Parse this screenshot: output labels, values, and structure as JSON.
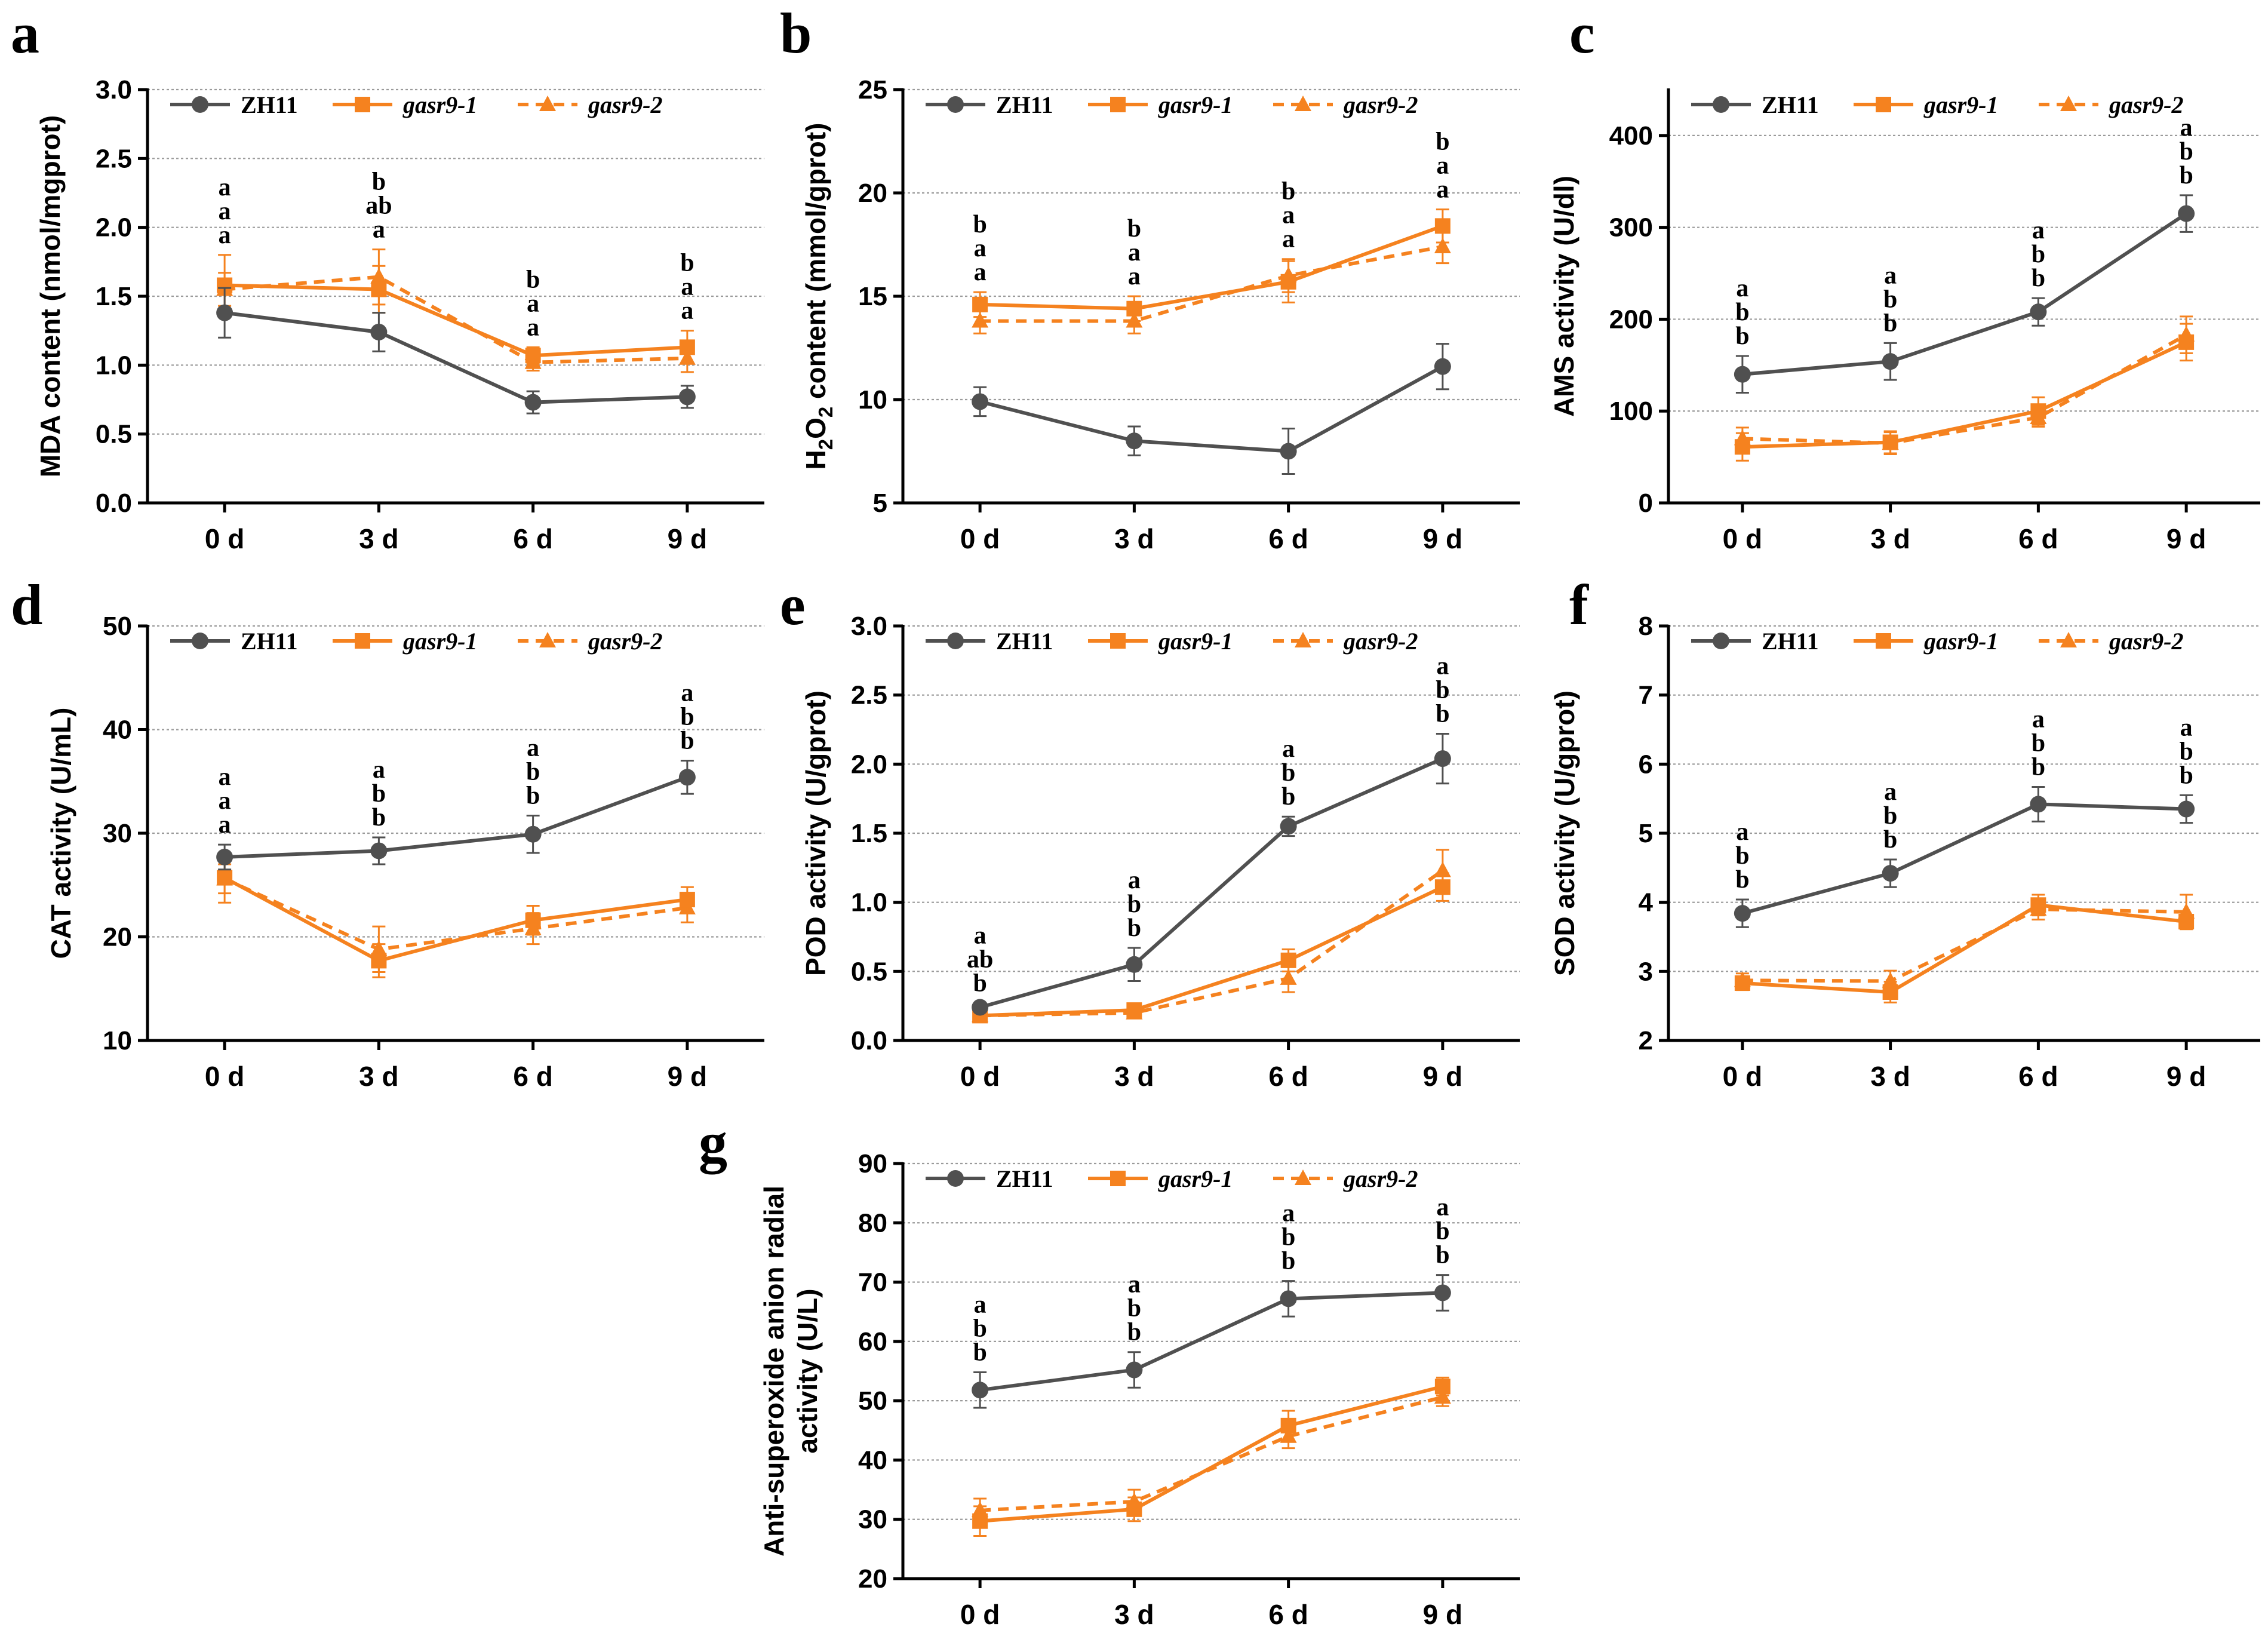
{
  "colors": {
    "zh11": "#505050",
    "mutant": "#f5821f",
    "axis": "#000000",
    "grid": "#9a9a9a"
  },
  "legend": {
    "entries": [
      {
        "label": "ZH11",
        "italic": false,
        "marker": "circle",
        "dashed": false,
        "color": "#505050"
      },
      {
        "label": "gasr9-1",
        "italic": true,
        "marker": "square",
        "dashed": false,
        "color": "#f5821f"
      },
      {
        "label": "gasr9-2",
        "italic": true,
        "marker": "triangle",
        "dashed": true,
        "color": "#f5821f"
      }
    ]
  },
  "chart_data": [
    {
      "panel": "a",
      "type": "line",
      "categories": [
        "0 d",
        "3 d",
        "6 d",
        "9 d"
      ],
      "ylabel": "MDA content (nmol/mgprot)",
      "ylim": [
        0,
        3
      ],
      "yticks": [
        0.0,
        0.5,
        1.0,
        1.5,
        2.0,
        2.5,
        3.0
      ],
      "ytick_decimals": 1,
      "series": [
        {
          "name": "ZH11",
          "values": [
            1.38,
            1.24,
            0.73,
            0.77
          ],
          "errors": [
            0.18,
            0.14,
            0.08,
            0.08
          ]
        },
        {
          "name": "gasr9-1",
          "values": [
            1.58,
            1.55,
            1.07,
            1.13
          ],
          "errors": [
            0.22,
            0.17,
            0.06,
            0.12
          ]
        },
        {
          "name": "gasr9-2",
          "values": [
            1.55,
            1.64,
            1.02,
            1.05
          ],
          "errors": [
            0.12,
            0.2,
            0.06,
            0.1
          ]
        }
      ],
      "significance": [
        [
          "a",
          "a",
          "a"
        ],
        [
          "b",
          "ab",
          "a"
        ],
        [
          "b",
          "a",
          "a"
        ],
        [
          "b",
          "a",
          "a"
        ]
      ]
    },
    {
      "panel": "b",
      "type": "line",
      "categories": [
        "0 d",
        "3 d",
        "6 d",
        "9 d"
      ],
      "ylabel_main": "H",
      "ylabel_sub1": "2",
      "ylabel_mid": "O",
      "ylabel_sub2": "2",
      "ylabel_tail": " content (mmol/gprot)",
      "ylim": [
        5,
        25
      ],
      "yticks": [
        5,
        10,
        15,
        20,
        25
      ],
      "ytick_decimals": 0,
      "series": [
        {
          "name": "ZH11",
          "values": [
            9.9,
            8.0,
            7.5,
            11.6
          ],
          "errors": [
            0.7,
            0.7,
            1.1,
            1.1
          ]
        },
        {
          "name": "gasr9-1",
          "values": [
            14.6,
            14.4,
            15.7,
            18.4
          ],
          "errors": [
            0.6,
            0.6,
            1.0,
            0.8
          ]
        },
        {
          "name": "gasr9-2",
          "values": [
            13.8,
            13.8,
            16.0,
            17.4
          ],
          "errors": [
            0.6,
            0.6,
            0.8,
            0.8
          ]
        }
      ],
      "significance": [
        [
          "b",
          "a",
          "a"
        ],
        [
          "b",
          "a",
          "a"
        ],
        [
          "b",
          "a",
          "a"
        ],
        [
          "b",
          "a",
          "a"
        ]
      ]
    },
    {
      "panel": "c",
      "type": "line",
      "categories": [
        "0 d",
        "3 d",
        "6 d",
        "9 d"
      ],
      "ylabel": "AMS activity (U/dl)",
      "ylim": [
        0,
        450
      ],
      "yticks": [
        0,
        100,
        200,
        300,
        400
      ],
      "ytick_decimals": 0,
      "series": [
        {
          "name": "ZH11",
          "values": [
            140,
            154,
            208,
            315
          ],
          "errors": [
            20,
            20,
            15,
            20
          ]
        },
        {
          "name": "gasr9-1",
          "values": [
            61,
            66,
            100,
            175
          ],
          "errors": [
            15,
            12,
            15,
            20
          ]
        },
        {
          "name": "gasr9-2",
          "values": [
            70,
            65,
            93,
            183
          ],
          "errors": [
            12,
            12,
            10,
            20
          ]
        }
      ],
      "significance": [
        [
          "a",
          "b",
          "b"
        ],
        [
          "a",
          "b",
          "b"
        ],
        [
          "a",
          "b",
          "b"
        ],
        [
          "a",
          "b",
          "b"
        ]
      ]
    },
    {
      "panel": "d",
      "type": "line",
      "categories": [
        "0 d",
        "3 d",
        "6 d",
        "9 d"
      ],
      "ylabel": "CAT activity (U/mL)",
      "ylim": [
        10,
        50
      ],
      "yticks": [
        10,
        20,
        30,
        40,
        50
      ],
      "ytick_decimals": 0,
      "series": [
        {
          "name": "ZH11",
          "values": [
            27.7,
            28.3,
            29.9,
            35.4
          ],
          "errors": [
            1.2,
            1.3,
            1.8,
            1.6
          ]
        },
        {
          "name": "gasr9-1",
          "values": [
            25.7,
            17.7,
            21.6,
            23.6
          ],
          "errors": [
            2.4,
            1.6,
            1.4,
            1.2
          ]
        },
        {
          "name": "gasr9-2",
          "values": [
            25.6,
            18.8,
            20.8,
            22.8
          ],
          "errors": [
            1.4,
            2.2,
            1.5,
            1.4
          ]
        }
      ],
      "significance": [
        [
          "a",
          "a",
          "a"
        ],
        [
          "a",
          "b",
          "b"
        ],
        [
          "a",
          "b",
          "b"
        ],
        [
          "a",
          "b",
          "b"
        ]
      ]
    },
    {
      "panel": "e",
      "type": "line",
      "categories": [
        "0 d",
        "3 d",
        "6 d",
        "9 d"
      ],
      "ylabel": "POD activity (U/gprot)",
      "ylim": [
        0,
        3
      ],
      "yticks": [
        0.0,
        0.5,
        1.0,
        1.5,
        2.0,
        2.5,
        3.0
      ],
      "ytick_decimals": 1,
      "series": [
        {
          "name": "ZH11",
          "values": [
            0.24,
            0.55,
            1.55,
            2.04
          ],
          "errors": [
            0.03,
            0.12,
            0.07,
            0.18
          ]
        },
        {
          "name": "gasr9-1",
          "values": [
            0.18,
            0.22,
            0.58,
            1.11
          ],
          "errors": [
            0.03,
            0.04,
            0.08,
            0.1
          ]
        },
        {
          "name": "gasr9-2",
          "values": [
            0.18,
            0.2,
            0.45,
            1.23
          ],
          "errors": [
            0.03,
            0.04,
            0.1,
            0.15
          ]
        }
      ],
      "significance": [
        [
          "a",
          "ab",
          "b"
        ],
        [
          "a",
          "b",
          "b"
        ],
        [
          "a",
          "b",
          "b"
        ],
        [
          "a",
          "b",
          "b"
        ]
      ]
    },
    {
      "panel": "f",
      "type": "line",
      "categories": [
        "0 d",
        "3 d",
        "6 d",
        "9 d"
      ],
      "ylabel": "SOD activity (U/gprot)",
      "ylim": [
        2,
        8
      ],
      "yticks": [
        2,
        3,
        4,
        5,
        6,
        7,
        8
      ],
      "ytick_decimals": 0,
      "series": [
        {
          "name": "ZH11",
          "values": [
            3.84,
            4.42,
            5.42,
            5.35
          ],
          "errors": [
            0.2,
            0.2,
            0.25,
            0.2
          ]
        },
        {
          "name": "gasr9-1",
          "values": [
            2.83,
            2.7,
            3.96,
            3.72
          ],
          "errors": [
            0.1,
            0.15,
            0.15,
            0.1
          ]
        },
        {
          "name": "gasr9-2",
          "values": [
            2.87,
            2.86,
            3.9,
            3.86
          ],
          "errors": [
            0.1,
            0.15,
            0.15,
            0.25
          ]
        }
      ],
      "significance": [
        [
          "a",
          "b",
          "b"
        ],
        [
          "a",
          "b",
          "b"
        ],
        [
          "a",
          "b",
          "b"
        ],
        [
          "a",
          "b",
          "b"
        ]
      ]
    },
    {
      "panel": "g",
      "type": "line",
      "categories": [
        "0 d",
        "3 d",
        "6 d",
        "9 d"
      ],
      "ylabel_line1": "Anti-superoxide anion radial",
      "ylabel_line2": "activity (U/L)",
      "ylim": [
        20,
        90
      ],
      "yticks": [
        20,
        30,
        40,
        50,
        60,
        70,
        80,
        90
      ],
      "ytick_decimals": 0,
      "series": [
        {
          "name": "ZH11",
          "values": [
            51.8,
            55.2,
            67.2,
            68.2
          ],
          "errors": [
            3.0,
            3.0,
            3.0,
            3.0
          ]
        },
        {
          "name": "gasr9-1",
          "values": [
            29.7,
            31.7,
            45.8,
            52.4
          ],
          "errors": [
            2.5,
            2.0,
            2.5,
            1.5
          ]
        },
        {
          "name": "gasr9-2",
          "values": [
            31.5,
            33.0,
            44.0,
            50.6
          ],
          "errors": [
            2.0,
            2.0,
            2.0,
            1.5
          ]
        }
      ],
      "significance": [
        [
          "a",
          "b",
          "b"
        ],
        [
          "a",
          "b",
          "b"
        ],
        [
          "a",
          "b",
          "b"
        ],
        [
          "a",
          "b",
          "b"
        ]
      ]
    }
  ]
}
